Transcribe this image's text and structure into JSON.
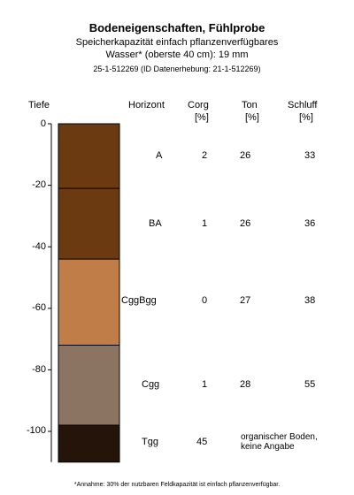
{
  "title": "Bodeneigenschaften, Fühlprobe",
  "subtitle_line1": "Speicherkapazität einfach pflanzenverfügbares",
  "subtitle_line2": "Wasser* (oberste 40 cm): 19 mm",
  "id_line": "25-1-512269 (ID Datenerhebung: 21-1-512269)",
  "headers": {
    "tiefe": "Tiefe",
    "horizont": "Horizont",
    "corg": "Corg",
    "corg_unit": "[%]",
    "ton": "Ton",
    "ton_unit": "[%]",
    "schluff": "Schluff",
    "schluff_unit": "[%]"
  },
  "axis_ticks": [
    "0",
    "-20",
    "-40",
    "-60",
    "-80",
    "-100"
  ],
  "chart_data": {
    "type": "table",
    "y_axis": {
      "label": "Tiefe",
      "range": [
        0,
        -110
      ],
      "ticks": [
        0,
        -20,
        -40,
        -60,
        -80,
        -100
      ]
    },
    "horizons": [
      {
        "name": "A",
        "top": 0,
        "bottom": -21,
        "color": "#6b3a10",
        "corg": "2",
        "ton": "26",
        "schluff": "33"
      },
      {
        "name": "BA",
        "top": -21,
        "bottom": -44,
        "color": "#6b3a10",
        "corg": "1",
        "ton": "26",
        "schluff": "36"
      },
      {
        "name": "CggBgg",
        "top": -44,
        "bottom": -72,
        "color": "#c07d48",
        "corg": "0",
        "ton": "27",
        "schluff": "38"
      },
      {
        "name": "Cgg",
        "top": -72,
        "bottom": -98,
        "color": "#8b7462",
        "corg": "1",
        "ton": "28",
        "schluff": "55"
      },
      {
        "name": "Tgg",
        "top": -98,
        "bottom": -110,
        "color": "#25140a",
        "corg": "45",
        "ton": "",
        "schluff": "",
        "note": "organischer Boden, keine Angabe"
      }
    ]
  },
  "footnote": "*Annahme: 30% der nutzbaren Feldkapazität ist einfach pflanzenverfügbar."
}
